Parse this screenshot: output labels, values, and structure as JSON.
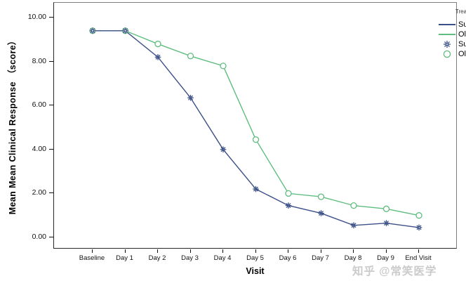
{
  "watermark": "知乎 @常笑医学",
  "chart_data": {
    "type": "line",
    "title": "",
    "xlabel": "Visit",
    "ylabel": "Mean Mean Clinical Response （score）",
    "categories": [
      "Baseline",
      "Day 1",
      "Day 2",
      "Day 3",
      "Day 4",
      "Day 5",
      "Day 6",
      "Day 7",
      "Day 8",
      "Day 9",
      "End Visit"
    ],
    "y_ticks": [
      {
        "label": "10.00",
        "value": 10
      },
      {
        "label": "8.00",
        "value": 8
      },
      {
        "label": "6.00",
        "value": 6
      },
      {
        "label": "4.00",
        "value": 4
      },
      {
        "label": "2.00",
        "value": 2
      },
      {
        "label": "0.00",
        "value": 0
      }
    ],
    "ylim": [
      0,
      10
    ],
    "grid": false,
    "legend": {
      "title": "Treatment",
      "position": "top-right-inside",
      "entries": [
        {
          "label": "Super Drug",
          "sample": "line",
          "color": "#3c5087"
        },
        {
          "label": "Old Drug",
          "sample": "line",
          "color": "#5fbd7f"
        },
        {
          "label": "Super Drug",
          "sample": "star-marker",
          "color": "#3c5087"
        },
        {
          "label": "Old Drug",
          "sample": "circle-marker",
          "color": "#5fbd7f"
        }
      ]
    },
    "series": [
      {
        "name": "Super Drug",
        "color": "#3c5087",
        "marker": "star",
        "values": [
          9.4,
          9.4,
          8.2,
          6.35,
          4.0,
          2.2,
          1.45,
          1.1,
          0.55,
          0.65,
          0.45
        ]
      },
      {
        "name": "Old Drug",
        "color": "#5fbd7f",
        "marker": "circle",
        "values": [
          9.4,
          9.4,
          8.8,
          8.25,
          7.8,
          4.45,
          2.0,
          1.85,
          1.45,
          1.3,
          1.0
        ]
      }
    ]
  }
}
